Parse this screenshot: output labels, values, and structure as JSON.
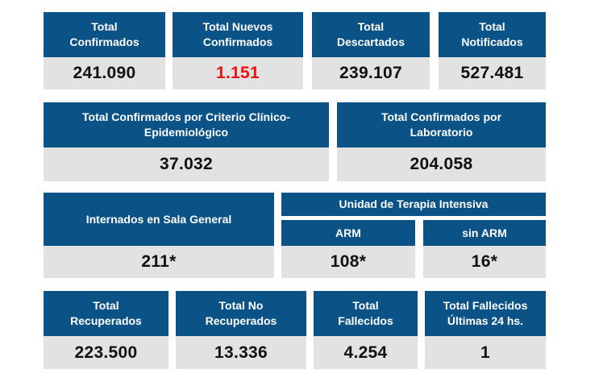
{
  "colors": {
    "header_bg": "#0b5286",
    "value_bg": "#e2e2e2",
    "highlight": "#f01010"
  },
  "row1": [
    {
      "title_1": "Total",
      "title_2": "Confirmados",
      "value": "241.090"
    },
    {
      "title_1": "Total Nuevos",
      "title_2": "Confirmados",
      "value": "1.151"
    },
    {
      "title_1": "Total",
      "title_2": "Descartados",
      "value": "239.107"
    },
    {
      "title_1": "Total",
      "title_2": "Notificados",
      "value": "527.481"
    }
  ],
  "row2": [
    {
      "title_1": "Total Confirmados por Criterio Clínico-",
      "title_2": "Epidemiológico",
      "value": "37.032"
    },
    {
      "title_1": "Total Confirmados por",
      "title_2": "Laboratorio",
      "value": "204.058"
    }
  ],
  "row3": {
    "sala_general": {
      "title": "Internados en Sala General",
      "value": "211*"
    },
    "uti": {
      "title": "Unidad de Terapia Intensiva",
      "arm": {
        "title": "ARM",
        "value": "108*"
      },
      "sin_arm": {
        "title": "sin ARM",
        "value": "16*"
      }
    }
  },
  "row4": [
    {
      "title_1": "Total",
      "title_2": "Recuperados",
      "value": "223.500"
    },
    {
      "title_1": "Total No",
      "title_2": "Recuperados",
      "value": "13.336"
    },
    {
      "title_1": "Total",
      "title_2": "Fallecidos",
      "value": "4.254"
    },
    {
      "title_1": "Total Fallecidos",
      "title_2": "Últimas 24 hs.",
      "value": "1"
    }
  ]
}
